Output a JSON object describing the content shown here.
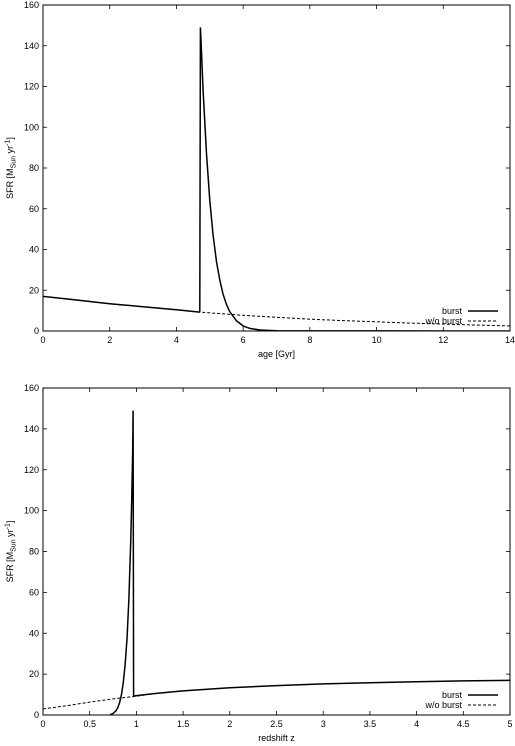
{
  "chart_data": [
    {
      "type": "line",
      "xlabel": "age [Gyr]",
      "ylabel": {
        "main": "SFR [M",
        "sub": "Sun",
        "mid": " yr",
        "sup": "-1",
        "end": "]"
      },
      "xlim": [
        0,
        14
      ],
      "ylim": [
        0,
        160
      ],
      "xticks": [
        0,
        2,
        4,
        6,
        8,
        10,
        12,
        14
      ],
      "yticks": [
        0,
        20,
        40,
        60,
        80,
        100,
        120,
        140,
        160
      ],
      "legend_position": "bottom-right",
      "series": [
        {
          "name": "burst",
          "style": "solid",
          "x": [
            0,
            1,
            2,
            3,
            4,
            4.69,
            4.7,
            4.72,
            4.75,
            4.8,
            4.9,
            5.0,
            5.1,
            5.2,
            5.3,
            5.4,
            5.5,
            5.6,
            5.8,
            6.0,
            6.2,
            6.5,
            7,
            8,
            10,
            12,
            14
          ],
          "y": [
            17,
            15.2,
            13.4,
            11.9,
            10.4,
            9.3,
            9.5,
            149,
            138,
            118,
            87,
            64,
            47,
            34,
            25,
            18,
            13,
            9.4,
            5,
            2.5,
            1.3,
            0.5,
            0.1,
            0.05,
            0.03,
            0.02,
            0.01
          ]
        },
        {
          "name": "w/o burst",
          "style": "dashed",
          "x": [
            0,
            1,
            2,
            3,
            4,
            5,
            6,
            7,
            8,
            9,
            10,
            11,
            12,
            13,
            14
          ],
          "y": [
            17,
            15.2,
            13.4,
            11.9,
            10.4,
            8.9,
            7.7,
            6.7,
            5.8,
            5.1,
            4.5,
            3.9,
            3.4,
            2.9,
            2.5
          ]
        }
      ]
    },
    {
      "type": "line",
      "xlabel": "redshift z",
      "ylabel": {
        "main": "SFR [M",
        "sub": "Sun",
        "mid": " yr",
        "sup": "-1",
        "end": "]"
      },
      "xlim": [
        0,
        5
      ],
      "ylim": [
        0,
        160
      ],
      "xticks": [
        0,
        0.5,
        1,
        1.5,
        2,
        2.5,
        3,
        3.5,
        4,
        4.5,
        5
      ],
      "yticks": [
        0,
        20,
        40,
        60,
        80,
        100,
        120,
        140,
        160
      ],
      "legend_position": "bottom-right",
      "series": [
        {
          "name": "burst",
          "style": "solid",
          "x": [
            0.72,
            0.75,
            0.78,
            0.8,
            0.82,
            0.84,
            0.86,
            0.88,
            0.9,
            0.92,
            0.94,
            0.95,
            0.96,
            0.965,
            0.97,
            0.98,
            1.0,
            1.2,
            1.5,
            2,
            2.5,
            3,
            3.5,
            4,
            4.5,
            5
          ],
          "y": [
            0.2,
            0.8,
            2,
            3.5,
            6,
            10,
            16,
            25,
            38,
            57,
            86,
            105,
            130,
            149,
            9.2,
            9.3,
            9.5,
            10.5,
            11.8,
            13.3,
            14.4,
            15.2,
            15.8,
            16.3,
            16.7,
            17.0
          ]
        },
        {
          "name": "w/o burst",
          "style": "dashed",
          "x": [
            0,
            0.25,
            0.5,
            0.75,
            1.0,
            1.2
          ],
          "y": [
            3.0,
            4.5,
            6.3,
            7.9,
            9.2,
            10.5
          ]
        }
      ]
    }
  ]
}
